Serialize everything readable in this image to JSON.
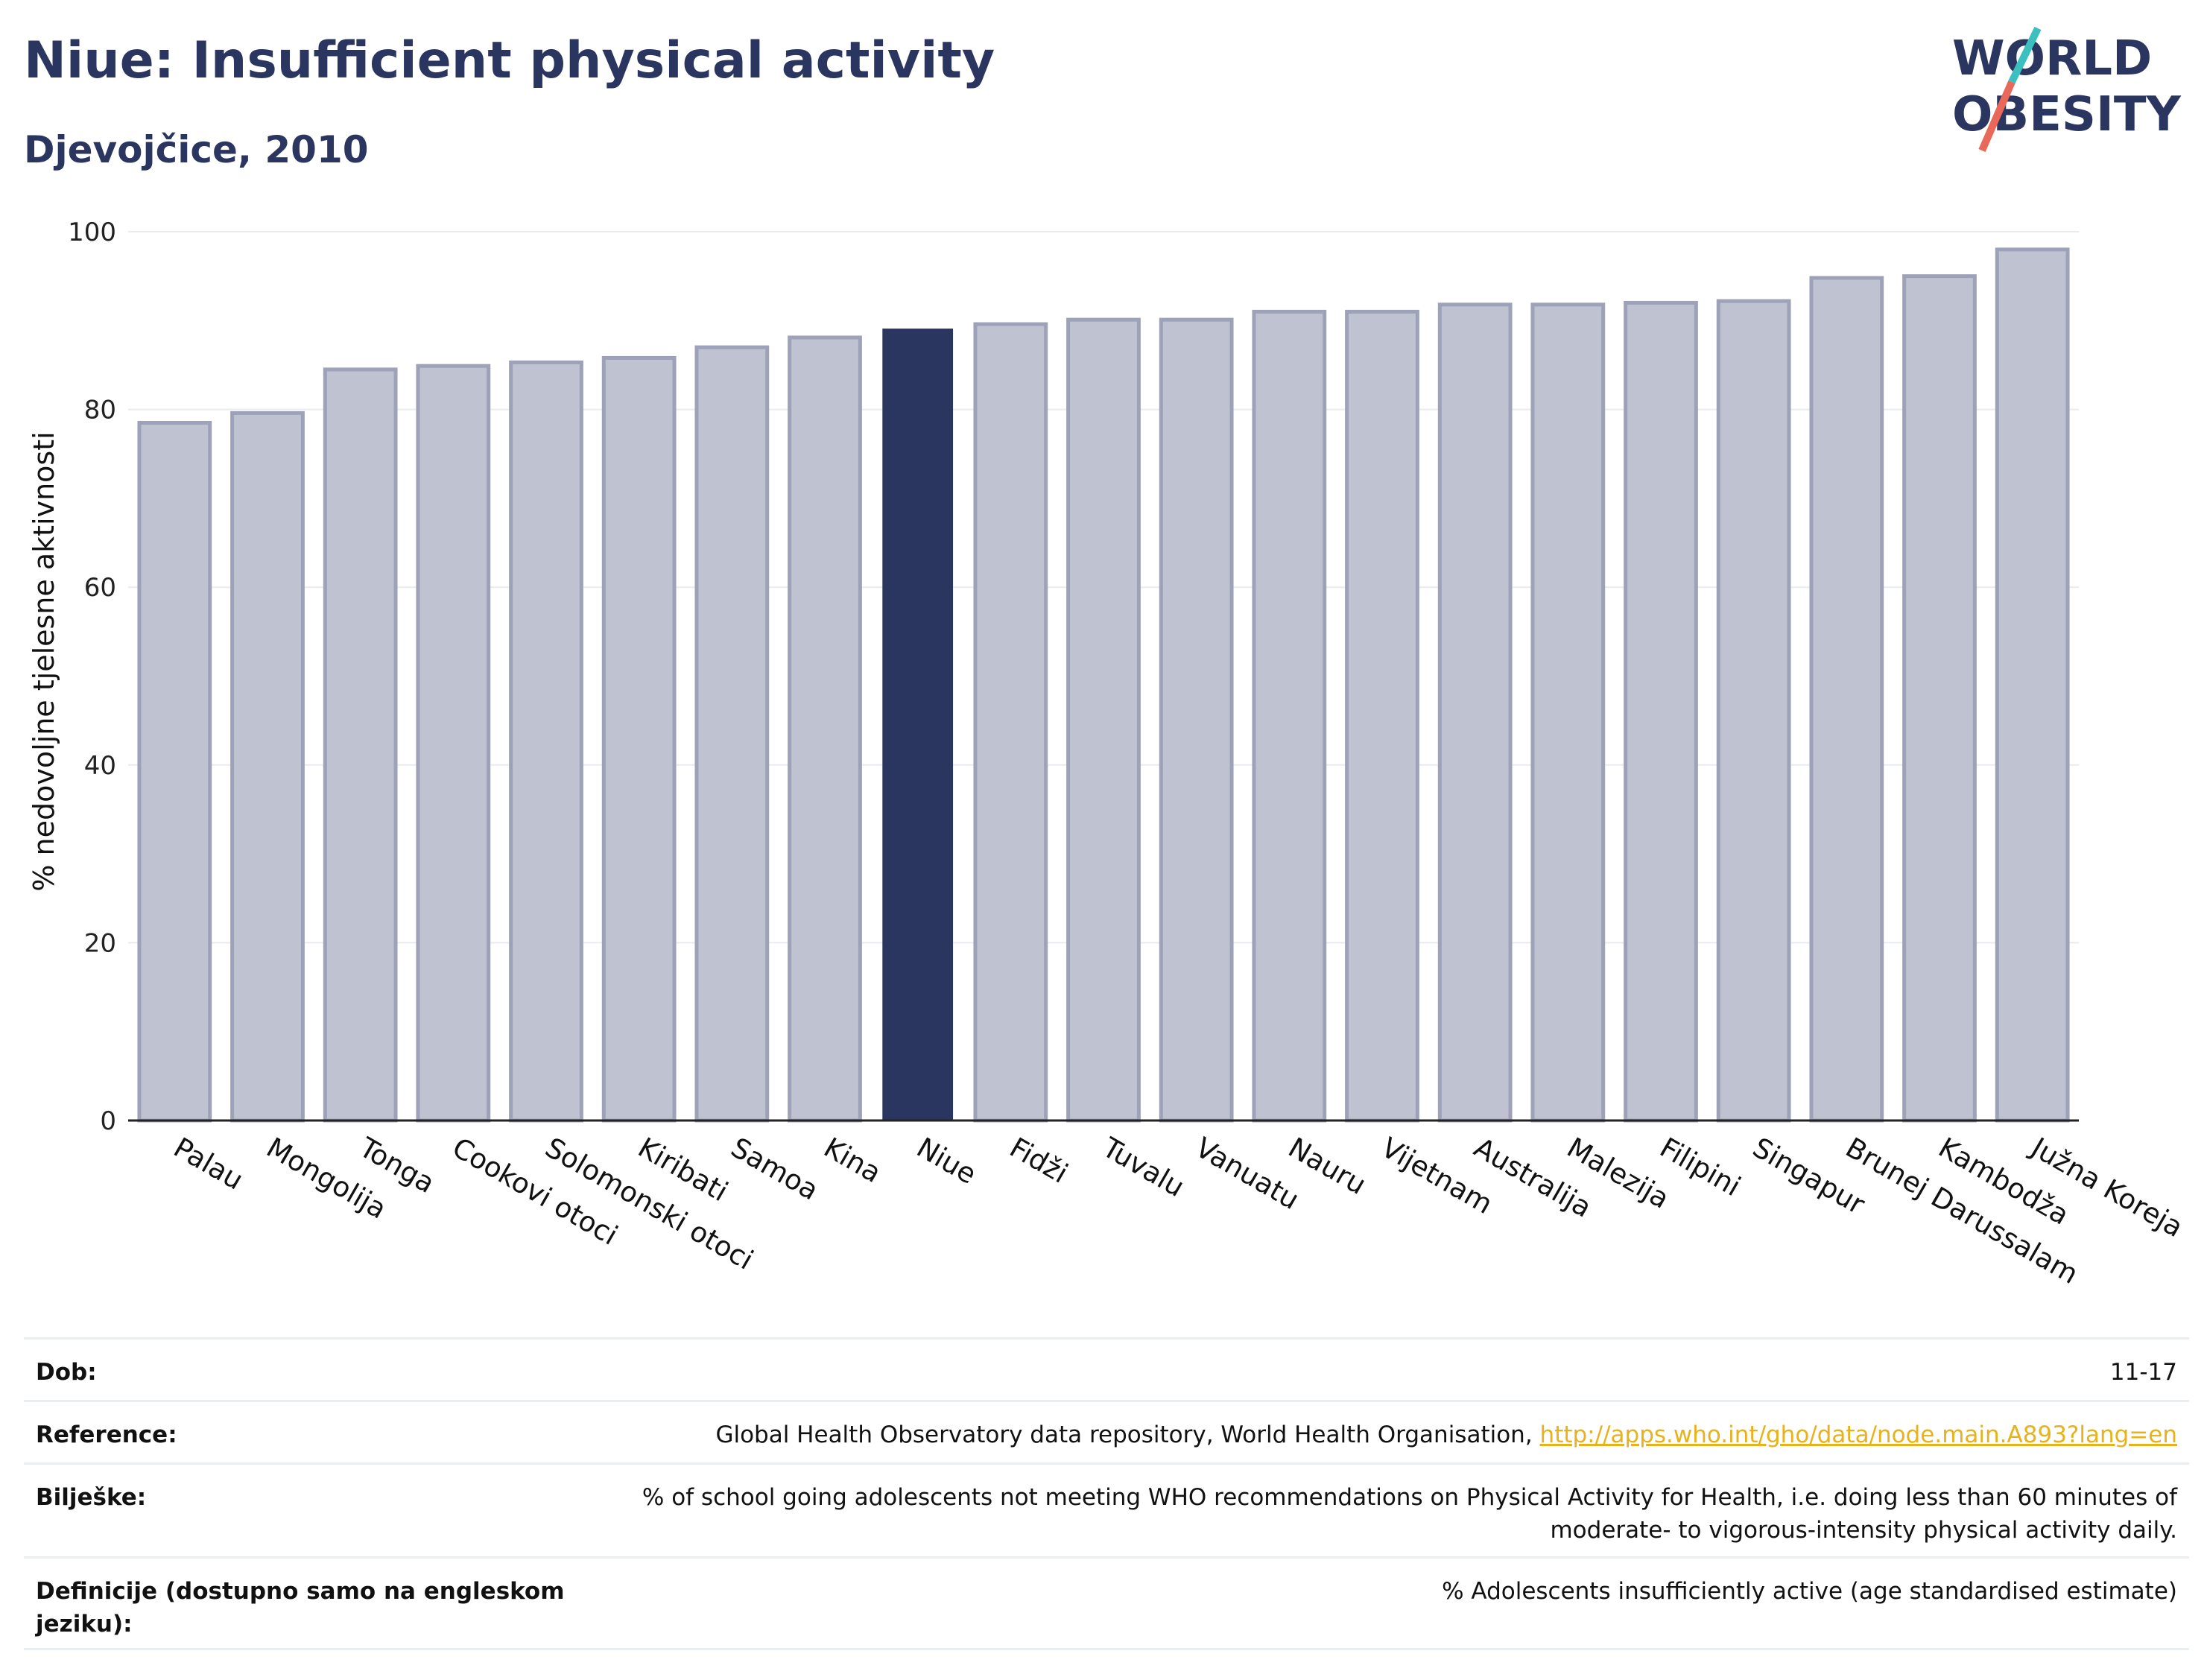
{
  "header": {
    "title": "Niue: Insufficient physical activity",
    "subtitle": "Djevojčice, 2010"
  },
  "logo": {
    "line1": "WORLD",
    "line2": "OBESITY"
  },
  "colors": {
    "highlight_bar": "#2b3660",
    "other_bar": "#bfc2d0",
    "other_bar_border": "#9da2b8",
    "title": "#2b3660",
    "link": "#e8b21a",
    "logo_teal": "#3bbfbf",
    "logo_red": "#e8695a"
  },
  "chart_data": {
    "type": "bar",
    "ylabel": "% nedovoljne tjelesne aktivnosti",
    "ylim": [
      0,
      100
    ],
    "yticks": [
      0,
      20,
      40,
      60,
      80,
      100
    ],
    "grid": true,
    "highlight": "Niue",
    "categories": [
      "Palau",
      "Mongolija",
      "Tonga",
      "Cookovi otoci",
      "Solomonski otoci",
      "Kiribati",
      "Samoa",
      "Kina",
      "Niue",
      "Fidži",
      "Tuvalu",
      "Vanuatu",
      "Nauru",
      "Vijetnam",
      "Australija",
      "Malezija",
      "Filipini",
      "Singapur",
      "Brunej Darussalam",
      "Kambodža",
      "Južna Koreja"
    ],
    "values": [
      78.5,
      79.6,
      84.5,
      84.9,
      85.3,
      85.8,
      87.0,
      88.1,
      89.1,
      89.6,
      90.1,
      90.1,
      91.0,
      91.0,
      91.8,
      91.8,
      92.0,
      92.2,
      94.8,
      95.0,
      98.0
    ]
  },
  "meta": {
    "rows": [
      {
        "label": "Dob:",
        "value": "11-17"
      },
      {
        "label": "Reference:",
        "value": "Global Health Observatory data repository, World Health Organisation, ",
        "link": "http://apps.who.int/gho/data/node.main.A893?lang=en"
      },
      {
        "label": "Bilješke:",
        "value": "% of school going adolescents not meeting WHO recommendations on Physical Activity for Health, i.e. doing less than 60 minutes of moderate- to vigorous-intensity physical activity daily."
      },
      {
        "label": "Definicije (dostupno samo na engleskom jeziku):",
        "value": "% Adolescents insufficiently active (age standardised estimate)"
      }
    ]
  }
}
